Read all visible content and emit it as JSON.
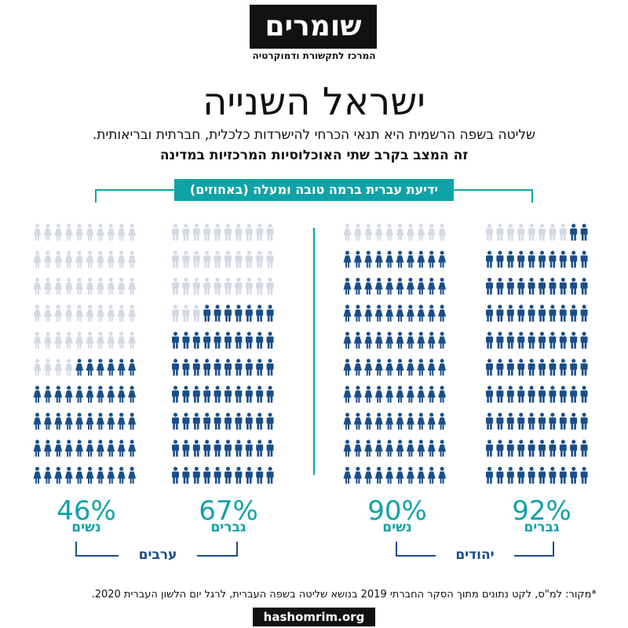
{
  "logo": {
    "name": "שומרים",
    "subtitle": "המרכז לתקשורת ודמוקרטיה"
  },
  "title": "ישראל השנייה",
  "subtitle_1": "שליטה בשפה הרשמית היא תנאי הכרחי להישרדות כלכלית, חברתית ובריאותית.",
  "subtitle_2": "זה המצב בקרב שתי האוכלוסיות המרכזיות במדינה",
  "chart_label": "ידיעת עברית ברמה טובה ומעלה (באחוזים)",
  "colors": {
    "filled": "#1a4e8a",
    "empty": "#d5d9e6",
    "accent": "#0fa3a8",
    "bracket": "#1a4e8a"
  },
  "chart_data": {
    "type": "pictograph",
    "unit": "percent",
    "icons_per_chart": 100,
    "series": [
      {
        "group": "יהודים",
        "gender": "גברים",
        "value": 92,
        "label": "92%",
        "icon": "man-icon"
      },
      {
        "group": "יהודים",
        "gender": "נשים",
        "value": 90,
        "label": "90%",
        "icon": "woman-icon"
      },
      {
        "group": "ערבים",
        "gender": "גברים",
        "value": 67,
        "label": "67%",
        "icon": "man-icon"
      },
      {
        "group": "ערבים",
        "gender": "נשים",
        "value": 46,
        "label": "46%",
        "icon": "woman-icon"
      }
    ]
  },
  "groups": [
    {
      "label": "יהודים"
    },
    {
      "label": "ערבים"
    }
  ],
  "source": "*מקור: למ\"ס, לקט נתונים מתוך הסקר החברתי 2019 בנושא שליטה בשפה העברית, לרגל יום הלשון העברית 2020.",
  "url": "hashomrim.org"
}
